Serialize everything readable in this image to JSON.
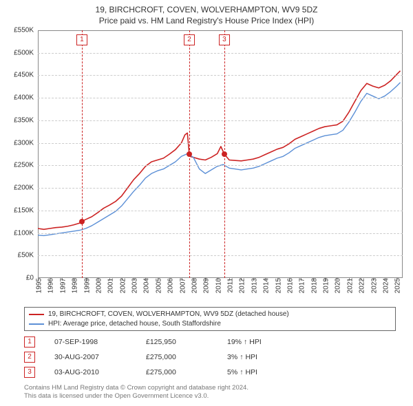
{
  "title_line1": "19, BIRCHCROFT, COVEN, WOLVERHAMPTON, WV9 5DZ",
  "title_line2": "Price paid vs. HM Land Registry's House Price Index (HPI)",
  "chart": {
    "type": "line",
    "x_min_year": 1995,
    "x_max_year": 2025.5,
    "y_min": 0,
    "y_max": 550000,
    "y_ticks": [
      0,
      50000,
      100000,
      150000,
      200000,
      250000,
      300000,
      350000,
      400000,
      450000,
      500000,
      550000
    ],
    "y_tick_labels": [
      "£0",
      "£50K",
      "£100K",
      "£150K",
      "£200K",
      "£250K",
      "£300K",
      "£350K",
      "£400K",
      "£450K",
      "£500K",
      "£550K"
    ],
    "x_ticks": [
      1995,
      1996,
      1997,
      1998,
      1999,
      2000,
      2001,
      2002,
      2003,
      2004,
      2005,
      2006,
      2007,
      2008,
      2009,
      2010,
      2011,
      2012,
      2013,
      2014,
      2015,
      2016,
      2017,
      2018,
      2019,
      2020,
      2021,
      2022,
      2023,
      2024,
      2025
    ],
    "grid_color": "#cccccc",
    "border_color": "#888888",
    "background_color": "#ffffff",
    "tick_fontsize": 10,
    "series": [
      {
        "id": "price_paid",
        "color": "#cc2222",
        "line_width": 1.6,
        "points": [
          [
            1995.0,
            110000
          ],
          [
            1995.5,
            108000
          ],
          [
            1996.0,
            110000
          ],
          [
            1996.5,
            112000
          ],
          [
            1997.0,
            113000
          ],
          [
            1997.5,
            115000
          ],
          [
            1998.0,
            118000
          ],
          [
            1998.5,
            122000
          ],
          [
            1998.68,
            125950
          ],
          [
            1999.0,
            130000
          ],
          [
            1999.5,
            136000
          ],
          [
            2000.0,
            145000
          ],
          [
            2000.5,
            155000
          ],
          [
            2001.0,
            162000
          ],
          [
            2001.5,
            170000
          ],
          [
            2002.0,
            182000
          ],
          [
            2002.5,
            200000
          ],
          [
            2003.0,
            218000
          ],
          [
            2003.5,
            232000
          ],
          [
            2004.0,
            248000
          ],
          [
            2004.5,
            258000
          ],
          [
            2005.0,
            262000
          ],
          [
            2005.5,
            266000
          ],
          [
            2006.0,
            275000
          ],
          [
            2006.5,
            285000
          ],
          [
            2007.0,
            300000
          ],
          [
            2007.3,
            318000
          ],
          [
            2007.5,
            322000
          ],
          [
            2007.66,
            275000
          ],
          [
            2007.7,
            270000
          ],
          [
            2008.0,
            268000
          ],
          [
            2008.5,
            264000
          ],
          [
            2009.0,
            262000
          ],
          [
            2009.5,
            268000
          ],
          [
            2010.0,
            276000
          ],
          [
            2010.3,
            292000
          ],
          [
            2010.59,
            275000
          ],
          [
            2011.0,
            262000
          ],
          [
            2011.5,
            261000
          ],
          [
            2012.0,
            260000
          ],
          [
            2012.5,
            262000
          ],
          [
            2013.0,
            264000
          ],
          [
            2013.5,
            268000
          ],
          [
            2014.0,
            274000
          ],
          [
            2014.5,
            280000
          ],
          [
            2015.0,
            286000
          ],
          [
            2015.5,
            290000
          ],
          [
            2016.0,
            298000
          ],
          [
            2016.5,
            308000
          ],
          [
            2017.0,
            314000
          ],
          [
            2017.5,
            320000
          ],
          [
            2018.0,
            326000
          ],
          [
            2018.5,
            332000
          ],
          [
            2019.0,
            336000
          ],
          [
            2019.5,
            338000
          ],
          [
            2020.0,
            340000
          ],
          [
            2020.5,
            348000
          ],
          [
            2021.0,
            368000
          ],
          [
            2021.5,
            392000
          ],
          [
            2022.0,
            416000
          ],
          [
            2022.5,
            432000
          ],
          [
            2023.0,
            426000
          ],
          [
            2023.5,
            422000
          ],
          [
            2024.0,
            428000
          ],
          [
            2024.5,
            438000
          ],
          [
            2025.0,
            452000
          ],
          [
            2025.3,
            460000
          ]
        ]
      },
      {
        "id": "hpi",
        "color": "#5b8fd6",
        "line_width": 1.4,
        "points": [
          [
            1995.0,
            95000
          ],
          [
            1995.5,
            94000
          ],
          [
            1996.0,
            96000
          ],
          [
            1996.5,
            98000
          ],
          [
            1997.0,
            100000
          ],
          [
            1997.5,
            102000
          ],
          [
            1998.0,
            104000
          ],
          [
            1998.5,
            106000
          ],
          [
            1999.0,
            110000
          ],
          [
            1999.5,
            116000
          ],
          [
            2000.0,
            124000
          ],
          [
            2000.5,
            132000
          ],
          [
            2001.0,
            140000
          ],
          [
            2001.5,
            148000
          ],
          [
            2002.0,
            160000
          ],
          [
            2002.5,
            176000
          ],
          [
            2003.0,
            192000
          ],
          [
            2003.5,
            206000
          ],
          [
            2004.0,
            222000
          ],
          [
            2004.5,
            232000
          ],
          [
            2005.0,
            238000
          ],
          [
            2005.5,
            242000
          ],
          [
            2006.0,
            250000
          ],
          [
            2006.5,
            258000
          ],
          [
            2007.0,
            270000
          ],
          [
            2007.5,
            276000
          ],
          [
            2008.0,
            268000
          ],
          [
            2008.5,
            242000
          ],
          [
            2009.0,
            232000
          ],
          [
            2009.5,
            240000
          ],
          [
            2010.0,
            248000
          ],
          [
            2010.5,
            252000
          ],
          [
            2011.0,
            244000
          ],
          [
            2011.5,
            242000
          ],
          [
            2012.0,
            240000
          ],
          [
            2012.5,
            242000
          ],
          [
            2013.0,
            244000
          ],
          [
            2013.5,
            248000
          ],
          [
            2014.0,
            254000
          ],
          [
            2014.5,
            260000
          ],
          [
            2015.0,
            266000
          ],
          [
            2015.5,
            270000
          ],
          [
            2016.0,
            278000
          ],
          [
            2016.5,
            288000
          ],
          [
            2017.0,
            294000
          ],
          [
            2017.5,
            300000
          ],
          [
            2018.0,
            306000
          ],
          [
            2018.5,
            312000
          ],
          [
            2019.0,
            316000
          ],
          [
            2019.5,
            318000
          ],
          [
            2020.0,
            320000
          ],
          [
            2020.5,
            328000
          ],
          [
            2021.0,
            346000
          ],
          [
            2021.5,
            368000
          ],
          [
            2022.0,
            392000
          ],
          [
            2022.5,
            410000
          ],
          [
            2023.0,
            404000
          ],
          [
            2023.5,
            398000
          ],
          [
            2024.0,
            404000
          ],
          [
            2024.5,
            414000
          ],
          [
            2025.0,
            426000
          ],
          [
            2025.3,
            434000
          ]
        ]
      }
    ],
    "events": [
      {
        "n": "1",
        "year": 1998.68,
        "price": 125950
      },
      {
        "n": "2",
        "year": 2007.66,
        "price": 275000
      },
      {
        "n": "3",
        "year": 2010.59,
        "price": 275000
      }
    ]
  },
  "legend": {
    "border_color": "#666666",
    "items": [
      {
        "color": "#cc2222",
        "label": "19, BIRCHCROFT, COVEN, WOLVERHAMPTON, WV9 5DZ (detached house)"
      },
      {
        "color": "#5b8fd6",
        "label": "HPI: Average price, detached house, South Staffordshire"
      }
    ]
  },
  "sales": [
    {
      "n": "1",
      "date": "07-SEP-1998",
      "price": "£125,950",
      "delta": "19%",
      "arrow": "↑",
      "suffix": "HPI"
    },
    {
      "n": "2",
      "date": "30-AUG-2007",
      "price": "£275,000",
      "delta": "3%",
      "arrow": "↑",
      "suffix": "HPI"
    },
    {
      "n": "3",
      "date": "03-AUG-2010",
      "price": "£275,000",
      "delta": "5%",
      "arrow": "↑",
      "suffix": "HPI"
    }
  ],
  "footnote_line1": "Contains HM Land Registry data © Crown copyright and database right 2024.",
  "footnote_line2": "This data is licensed under the Open Government Licence v3.0."
}
